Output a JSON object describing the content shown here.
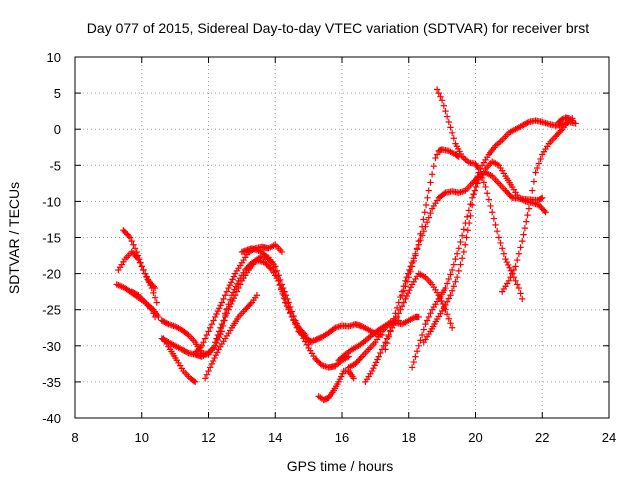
{
  "chart_data": {
    "type": "scatter",
    "title": "Day 077 of 2015, Sidereal Day-to-day VTEC variation (SDTVAR) for receiver brst",
    "xlabel": "GPS time / hours",
    "ylabel": "SDTVAR / TECUs",
    "xlim": [
      8,
      24
    ],
    "ylim": [
      -40,
      10
    ],
    "xticks": [
      "8",
      "10",
      "12",
      "14",
      "16",
      "18",
      "20",
      "22",
      "24"
    ],
    "yticks": [
      "-40",
      "-35",
      "-30",
      "-25",
      "-20",
      "-15",
      "-10",
      "-5",
      "0",
      "5",
      "10"
    ],
    "grid": true,
    "legend": "none",
    "marker": "plus",
    "color": "#ff0000",
    "series": [
      {
        "x": [
          9.25,
          9.5,
          9.8,
          10.1,
          10.35,
          10.5
        ],
        "y": [
          -21.5,
          -22,
          -23,
          -24,
          -25,
          -26
        ]
      },
      {
        "x": [
          9.3,
          9.5,
          9.7,
          9.9,
          10.1,
          10.3,
          10.45
        ],
        "y": [
          -19.5,
          -18,
          -17,
          -18,
          -20,
          -22,
          -24
        ]
      },
      {
        "x": [
          9.45,
          9.65,
          9.85,
          10.0,
          10.2,
          10.4
        ],
        "y": [
          -14,
          -15,
          -17,
          -19,
          -21,
          -22
        ]
      },
      {
        "x": [
          9.7,
          9.9,
          10.1,
          10.3,
          10.4
        ],
        "y": [
          -22.5,
          -23,
          -24,
          -25,
          -26
        ]
      },
      {
        "x": [
          10.6,
          10.8,
          11.0,
          11.2,
          11.4,
          11.6,
          11.8,
          12.0,
          12.2,
          12.4,
          12.55
        ],
        "y": [
          -26.5,
          -27,
          -27.3,
          -27.8,
          -28.5,
          -29.5,
          -31,
          -31.2,
          -30,
          -28,
          -25
        ]
      },
      {
        "x": [
          10.6,
          10.8,
          11.0,
          11.2,
          11.4,
          11.6,
          11.8,
          12.0,
          12.2
        ],
        "y": [
          -29,
          -29.5,
          -30,
          -30.5,
          -31,
          -31.2,
          -31.5,
          -31,
          -30
        ]
      },
      {
        "x": [
          10.65,
          10.85,
          11.05,
          11.25,
          11.45,
          11.6
        ],
        "y": [
          -29,
          -30.5,
          -32,
          -33.5,
          -34.5,
          -35
        ]
      },
      {
        "x": [
          11.9,
          12.1,
          12.3,
          12.5,
          12.7,
          12.9,
          13.1,
          13.3,
          13.45
        ],
        "y": [
          -34.5,
          -32.5,
          -30.5,
          -29,
          -27.5,
          -26,
          -25,
          -24,
          -23
        ]
      },
      {
        "x": [
          11.6,
          11.8,
          12.0,
          12.2,
          12.4,
          12.6,
          12.8,
          13.0,
          13.2,
          13.4,
          13.6,
          13.8,
          14.0,
          14.2
        ],
        "y": [
          -31,
          -30,
          -28,
          -26,
          -24,
          -22,
          -20,
          -18.5,
          -17,
          -16.5,
          -16.3,
          -16.5,
          -16,
          -17
        ]
      },
      {
        "x": [
          12.2,
          12.4,
          12.6,
          12.8,
          13.0,
          13.2,
          13.4,
          13.6,
          13.8,
          14.0,
          14.2,
          14.4,
          14.6,
          14.8,
          15.0,
          15.2,
          15.4,
          15.6,
          15.8,
          16.0,
          16.2
        ],
        "y": [
          -29.5,
          -27,
          -25,
          -23,
          -21,
          -19.5,
          -18.2,
          -17.6,
          -17.8,
          -19,
          -21.5,
          -24,
          -26.5,
          -28.5,
          -30.3,
          -31.8,
          -32.7,
          -33,
          -32.8,
          -32,
          -31.5
        ]
      },
      {
        "x": [
          12.5,
          12.7,
          12.9,
          13.1,
          13.3,
          13.5,
          13.7,
          13.9,
          14.1,
          14.3,
          14.5,
          14.7,
          14.9,
          15.1
        ],
        "y": [
          -25.5,
          -23,
          -21,
          -19.5,
          -18.5,
          -18.2,
          -18.5,
          -19.5,
          -21,
          -23.5,
          -26,
          -28,
          -28.8,
          -29.5
        ]
      },
      {
        "x": [
          13.0,
          13.3,
          13.6,
          13.9,
          14.1,
          14.3,
          14.5,
          14.7,
          14.9
        ],
        "y": [
          -17,
          -16.5,
          -17,
          -18.5,
          -21,
          -24,
          -26,
          -27.5,
          -28.5
        ]
      },
      {
        "x": [
          15.0,
          15.2,
          15.4,
          15.6,
          15.8,
          16.0,
          16.2,
          16.4,
          16.6,
          16.8,
          17.0,
          17.2
        ],
        "y": [
          -29.5,
          -29.2,
          -28.8,
          -28.2,
          -27.5,
          -27.2,
          -27.3,
          -27,
          -27.3,
          -27.8,
          -28.3,
          -28.5
        ]
      },
      {
        "x": [
          15.3,
          15.45,
          15.6,
          15.75,
          15.9,
          16.05,
          16.2,
          16.35
        ],
        "y": [
          -37,
          -37.5,
          -37.2,
          -36.2,
          -35,
          -33.5,
          -33.5,
          -34.5
        ]
      },
      {
        "x": [
          15.9,
          16.1,
          16.3,
          16.5,
          16.7,
          16.9,
          17.1,
          17.3,
          17.5,
          17.7
        ],
        "y": [
          -32,
          -31.2,
          -30.5,
          -30,
          -29.3,
          -28.5,
          -27.8,
          -27.2,
          -26.6,
          -26.5
        ]
      },
      {
        "x": [
          16.2,
          16.4,
          16.6,
          16.8,
          17.0,
          17.2,
          17.4,
          17.6,
          17.8,
          18.0,
          18.2,
          18.3
        ],
        "y": [
          -33,
          -32.5,
          -31.5,
          -30.5,
          -29.5,
          -28,
          -27,
          -26.8,
          -27,
          -26.5,
          -26,
          -26
        ]
      },
      {
        "x": [
          16.7,
          16.9,
          17.1,
          17.3,
          17.5,
          17.7,
          17.9,
          18.1,
          18.3,
          18.5,
          18.7,
          18.9,
          19.1,
          19.3
        ],
        "y": [
          -35,
          -33.5,
          -31.5,
          -29.5,
          -27.5,
          -25.5,
          -23.5,
          -21.5,
          -20,
          -20.5,
          -21.5,
          -23,
          -25,
          -27.5
        ]
      },
      {
        "x": [
          17.3,
          17.5,
          17.7,
          17.9,
          18.1,
          18.3,
          18.5,
          18.7,
          18.9,
          19.1,
          19.3,
          19.5,
          19.7,
          19.9,
          20.1,
          20.3,
          20.5,
          20.7,
          20.9,
          21.1,
          21.3,
          21.5,
          21.7,
          21.9,
          22.0
        ],
        "y": [
          -30.5,
          -27,
          -24,
          -21,
          -18.5,
          -16,
          -13.5,
          -11,
          -9.5,
          -8.8,
          -8.6,
          -8.8,
          -8.5,
          -7.5,
          -6.5,
          -6,
          -6.5,
          -7.5,
          -8.5,
          -9.5,
          -9.6,
          -9.7,
          -9.8,
          -9.8,
          -9.5
        ]
      },
      {
        "x": [
          17.8,
          18.0,
          18.2,
          18.4,
          18.6,
          18.8,
          18.9,
          19.0,
          19.2,
          19.4,
          19.5
        ],
        "y": [
          -23,
          -20.5,
          -17.5,
          -13.5,
          -8.5,
          -4,
          -3,
          -2.8,
          -3,
          -3.5,
          -3.8
        ]
      },
      {
        "x": [
          18.1,
          18.3,
          18.5,
          18.7,
          18.9,
          19.1,
          19.3,
          19.5,
          19.7,
          19.9,
          20.1,
          20.3,
          20.5,
          20.7,
          20.9,
          21.1,
          21.3,
          21.5,
          21.7,
          21.9,
          22.1
        ],
        "y": [
          -33,
          -30,
          -27,
          -25,
          -23.5,
          -22,
          -19.5,
          -16.5,
          -13,
          -9.5,
          -7,
          -5.5,
          -4.5,
          -5,
          -6.5,
          -8,
          -9.5,
          -10,
          -10.2,
          -10.5,
          -11.5
        ]
      },
      {
        "x": [
          18.45,
          18.65,
          18.85,
          19.05,
          19.25,
          19.45,
          19.65,
          19.85,
          20.0,
          20.1,
          20.2,
          20.4,
          20.6,
          20.8,
          21.0,
          21.2,
          21.4,
          21.6,
          21.8,
          22.0,
          22.2,
          22.4,
          22.6,
          22.8,
          23.0
        ],
        "y": [
          -29.5,
          -28,
          -26.3,
          -24.8,
          -23,
          -20.5,
          -17,
          -12,
          -7.5,
          -6,
          -5,
          -3.5,
          -2.3,
          -1.5,
          -0.5,
          0,
          0.5,
          1,
          1.2,
          1,
          0.7,
          0.5,
          0.6,
          1,
          0.8
        ]
      },
      {
        "x": [
          18.85,
          19.0,
          19.2,
          19.4,
          19.6,
          19.8,
          20.0,
          20.1,
          20.3,
          20.5,
          20.7,
          20.9,
          21.1,
          21.3,
          21.4
        ],
        "y": [
          5.5,
          4,
          1,
          -2,
          -3.8,
          -4.6,
          -4.8,
          -5.5,
          -8,
          -11.5,
          -15,
          -18,
          -20,
          -22,
          -23.5
        ]
      },
      {
        "x": [
          20.8,
          21.0,
          21.2,
          21.4,
          21.6,
          21.8,
          22.0,
          22.2,
          22.4,
          22.6,
          22.8,
          22.9
        ],
        "y": [
          -22.5,
          -21,
          -19,
          -15.5,
          -11,
          -6,
          -3.5,
          -2,
          -1,
          0,
          1.2,
          1.5
        ]
      },
      {
        "x": [
          22.5,
          22.6,
          22.7,
          22.8,
          22.9
        ],
        "y": [
          1,
          1.4,
          1.6,
          1.5,
          1.2
        ]
      }
    ]
  }
}
